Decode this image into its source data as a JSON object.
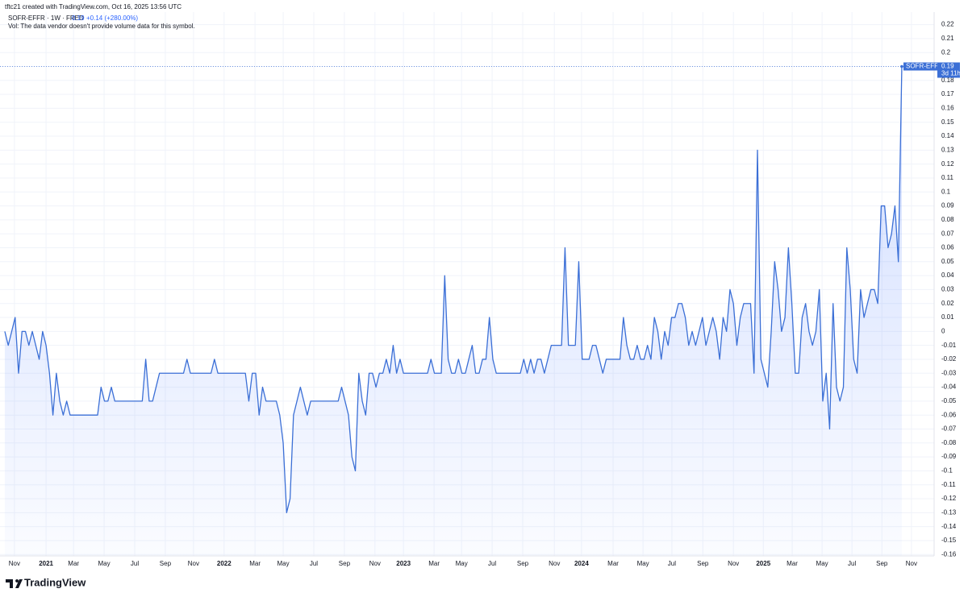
{
  "header": {
    "credit": "tftc21 created with TradingView.com, Oct 16, 2025 13:56 UTC",
    "symbol": "SOFR-EFFR · 1W · FRED",
    "change": "+0.14 (+280.00%)",
    "volume_note": "Vol: The data vendor doesn't provide volume data for this symbol.",
    "countdown": "3d 11h"
  },
  "footer": {
    "brand": "TradingView"
  },
  "chart_data": {
    "type": "line",
    "series": [
      {
        "name": "SOFR-EFFR",
        "color": "#3b6fd6",
        "values": [
          0,
          -0.01,
          0,
          0.01,
          -0.03,
          0,
          0,
          -0.01,
          0,
          -0.01,
          -0.02,
          0,
          -0.01,
          -0.03,
          -0.06,
          -0.03,
          -0.05,
          -0.06,
          -0.05,
          -0.06,
          -0.06,
          -0.06,
          -0.06,
          -0.06,
          -0.06,
          -0.06,
          -0.06,
          -0.06,
          -0.04,
          -0.05,
          -0.05,
          -0.04,
          -0.05,
          -0.05,
          -0.05,
          -0.05,
          -0.05,
          -0.05,
          -0.05,
          -0.05,
          -0.05,
          -0.02,
          -0.05,
          -0.05,
          -0.04,
          -0.03,
          -0.03,
          -0.03,
          -0.03,
          -0.03,
          -0.03,
          -0.03,
          -0.03,
          -0.02,
          -0.03,
          -0.03,
          -0.03,
          -0.03,
          -0.03,
          -0.03,
          -0.03,
          -0.02,
          -0.03,
          -0.03,
          -0.03,
          -0.03,
          -0.03,
          -0.03,
          -0.03,
          -0.03,
          -0.03,
          -0.05,
          -0.03,
          -0.03,
          -0.06,
          -0.04,
          -0.05,
          -0.05,
          -0.05,
          -0.05,
          -0.06,
          -0.08,
          -0.13,
          -0.12,
          -0.06,
          -0.05,
          -0.04,
          -0.05,
          -0.06,
          -0.05,
          -0.05,
          -0.05,
          -0.05,
          -0.05,
          -0.05,
          -0.05,
          -0.05,
          -0.05,
          -0.04,
          -0.05,
          -0.06,
          -0.09,
          -0.1,
          -0.03,
          -0.05,
          -0.06,
          -0.03,
          -0.03,
          -0.04,
          -0.03,
          -0.03,
          -0.02,
          -0.03,
          -0.01,
          -0.03,
          -0.02,
          -0.03,
          -0.03,
          -0.03,
          -0.03,
          -0.03,
          -0.03,
          -0.03,
          -0.03,
          -0.02,
          -0.03,
          -0.03,
          -0.03,
          0.04,
          -0.02,
          -0.03,
          -0.03,
          -0.02,
          -0.03,
          -0.03,
          -0.02,
          -0.01,
          -0.03,
          -0.03,
          -0.02,
          -0.02,
          0.01,
          -0.02,
          -0.03,
          -0.03,
          -0.03,
          -0.03,
          -0.03,
          -0.03,
          -0.03,
          -0.03,
          -0.02,
          -0.03,
          -0.02,
          -0.03,
          -0.02,
          -0.02,
          -0.03,
          -0.02,
          -0.01,
          -0.01,
          -0.01,
          -0.01,
          0.06,
          -0.01,
          -0.01,
          -0.01,
          0.05,
          -0.02,
          -0.02,
          -0.02,
          -0.01,
          -0.01,
          -0.02,
          -0.03,
          -0.02,
          -0.02,
          -0.02,
          -0.02,
          -0.02,
          0.01,
          -0.01,
          -0.02,
          -0.02,
          -0.01,
          -0.02,
          -0.02,
          -0.01,
          -0.02,
          0.01,
          0,
          -0.02,
          0,
          -0.01,
          0.01,
          0.01,
          0.02,
          0.02,
          0.01,
          -0.01,
          0,
          -0.01,
          0,
          0.01,
          -0.01,
          0,
          0.01,
          0,
          -0.02,
          0.01,
          0,
          0.03,
          0.02,
          -0.01,
          0.01,
          0.02,
          0.02,
          0.02,
          -0.03,
          0.13,
          -0.02,
          -0.03,
          -0.04,
          0,
          0.05,
          0.03,
          0,
          0.01,
          0.06,
          0.02,
          -0.03,
          -0.03,
          0.01,
          0.02,
          0,
          -0.01,
          0,
          0.03,
          -0.05,
          -0.03,
          -0.07,
          0.02,
          -0.04,
          -0.05,
          -0.04,
          0.06,
          0.03,
          -0.02,
          -0.03,
          0.03,
          0.01,
          0.02,
          0.03,
          0.03,
          0.02,
          0.09,
          0.09,
          0.06,
          0.07,
          0.09,
          0.05,
          0.19
        ]
      }
    ],
    "xlim": [
      -1.4,
      270.4
    ],
    "xticks": [
      {
        "value": 2.8,
        "label": "Nov"
      },
      {
        "value": 12.0,
        "label": "2021"
      },
      {
        "value": 20.0,
        "label": "Mar"
      },
      {
        "value": 28.9,
        "label": "May"
      },
      {
        "value": 37.8,
        "label": "Jul"
      },
      {
        "value": 46.7,
        "label": "Sep"
      },
      {
        "value": 54.9,
        "label": "Nov"
      },
      {
        "value": 63.8,
        "label": "2022"
      },
      {
        "value": 72.8,
        "label": "Mar"
      },
      {
        "value": 81.0,
        "label": "May"
      },
      {
        "value": 89.9,
        "label": "Jul"
      },
      {
        "value": 98.8,
        "label": "Sep"
      },
      {
        "value": 107.7,
        "label": "Nov"
      },
      {
        "value": 116.0,
        "label": "2023"
      },
      {
        "value": 124.9,
        "label": "Mar"
      },
      {
        "value": 132.9,
        "label": "May"
      },
      {
        "value": 141.8,
        "label": "Jul"
      },
      {
        "value": 150.7,
        "label": "Sep"
      },
      {
        "value": 159.9,
        "label": "Nov"
      },
      {
        "value": 167.8,
        "label": "2024"
      },
      {
        "value": 177.0,
        "label": "Mar"
      },
      {
        "value": 185.7,
        "label": "May"
      },
      {
        "value": 194.1,
        "label": "Jul"
      },
      {
        "value": 203.1,
        "label": "Sep"
      },
      {
        "value": 212.0,
        "label": "Nov"
      },
      {
        "value": 220.7,
        "label": "2025"
      },
      {
        "value": 229.1,
        "label": "Mar"
      },
      {
        "value": 237.8,
        "label": "May"
      },
      {
        "value": 246.5,
        "label": "Jul"
      },
      {
        "value": 255.2,
        "label": "Sep"
      },
      {
        "value": 263.8,
        "label": "Nov"
      }
    ],
    "ylim": [
      -0.161,
      0.229
    ],
    "yticks": [
      0.22,
      0.21,
      0.2,
      0.19,
      0.18,
      0.17,
      0.16,
      0.15,
      0.14,
      0.13,
      0.12,
      0.11,
      0.1,
      0.09,
      0.08,
      0.07,
      0.06,
      0.05,
      0.04,
      0.03,
      0.02,
      0.01,
      0,
      -0.01,
      -0.02,
      -0.03,
      -0.04,
      -0.05,
      -0.06,
      -0.07,
      -0.08,
      -0.09,
      -0.1,
      -0.11,
      -0.12,
      -0.13,
      -0.14,
      -0.15,
      -0.16
    ],
    "grid": true
  }
}
